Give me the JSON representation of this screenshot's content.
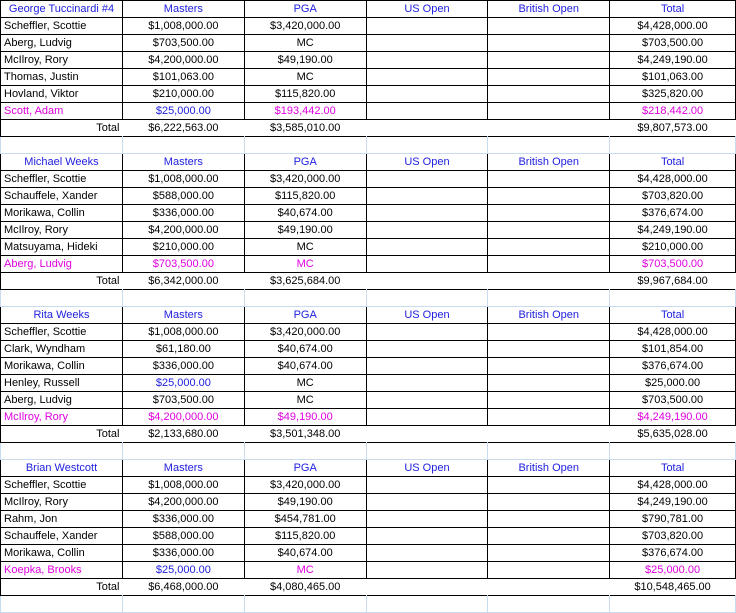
{
  "groups": [
    {
      "owner": "George Tuccinardi #4",
      "columns": [
        "Masters",
        "PGA",
        "US Open",
        "British Open",
        "Total"
      ],
      "rows": [
        {
          "name": "Scheffler, Scottie",
          "masters": "$1,008,000.00",
          "pga": "$3,420,000.00",
          "us": "",
          "british": "",
          "total": "$4,428,000.00",
          "alt": false
        },
        {
          "name": "Aberg, Ludvig",
          "masters": "$703,500.00",
          "pga": "MC",
          "us": "",
          "british": "",
          "total": "$703,500.00",
          "alt": false
        },
        {
          "name": "McIlroy, Rory",
          "masters": "$4,200,000.00",
          "pga": "$49,190.00",
          "us": "",
          "british": "",
          "total": "$4,249,190.00",
          "alt": false
        },
        {
          "name": "Thomas, Justin",
          "masters": "$101,063.00",
          "pga": "MC",
          "us": "",
          "british": "",
          "total": "$101,063.00",
          "alt": false
        },
        {
          "name": "Hovland, Viktor",
          "masters": "$210,000.00",
          "pga": "$115,820.00",
          "us": "",
          "british": "",
          "total": "$325,820.00",
          "alt": false
        },
        {
          "name": "Scott, Adam",
          "masters": "$25,000.00",
          "pga": "$193,442.00",
          "us": "",
          "british": "",
          "total": "$218,442.00",
          "alt": true,
          "masters_blue": true
        }
      ],
      "total": {
        "label": "Total",
        "masters": "$6,222,563.00",
        "pga": "$3,585,010.00",
        "total": "$9,807,573.00"
      }
    },
    {
      "owner": "Michael Weeks",
      "columns": [
        "Masters",
        "PGA",
        "US Open",
        "British Open",
        "Total"
      ],
      "rows": [
        {
          "name": "Scheffler, Scottie",
          "masters": "$1,008,000.00",
          "pga": "$3,420,000.00",
          "us": "",
          "british": "",
          "total": "$4,428,000.00",
          "alt": false
        },
        {
          "name": "Schauffele, Xander",
          "masters": "$588,000.00",
          "pga": "$115,820.00",
          "us": "",
          "british": "",
          "total": "$703,820.00",
          "alt": false
        },
        {
          "name": "Morikawa, Collin",
          "masters": "$336,000.00",
          "pga": "$40,674.00",
          "us": "",
          "british": "",
          "total": "$376,674.00",
          "alt": false
        },
        {
          "name": "McIlroy, Rory",
          "masters": "$4,200,000.00",
          "pga": "$49,190.00",
          "us": "",
          "british": "",
          "total": "$4,249,190.00",
          "alt": false
        },
        {
          "name": "Matsuyama, Hideki",
          "masters": "$210,000.00",
          "pga": "MC",
          "us": "",
          "british": "",
          "total": "$210,000.00",
          "alt": false
        },
        {
          "name": "Aberg, Ludvig",
          "masters": "$703,500.00",
          "pga": "MC",
          "us": "",
          "british": "",
          "total": "$703,500.00",
          "alt": true
        }
      ],
      "total": {
        "label": "Total",
        "masters": "$6,342,000.00",
        "pga": "$3,625,684.00",
        "total": "$9,967,684.00"
      }
    },
    {
      "owner": "Rita Weeks",
      "columns": [
        "Masters",
        "PGA",
        "US Open",
        "British Open",
        "Total"
      ],
      "rows": [
        {
          "name": "Scheffler, Scottie",
          "masters": "$1,008,000.00",
          "pga": "$3,420,000.00",
          "us": "",
          "british": "",
          "total": "$4,428,000.00",
          "alt": false
        },
        {
          "name": "Clark, Wyndham",
          "masters": "$61,180.00",
          "pga": "$40,674.00",
          "us": "",
          "british": "",
          "total": "$101,854.00",
          "alt": false
        },
        {
          "name": "Morikawa, Collin",
          "masters": "$336,000.00",
          "pga": "$40,674.00",
          "us": "",
          "british": "",
          "total": "$376,674.00",
          "alt": false
        },
        {
          "name": "Henley, Russell",
          "masters": "$25,000.00",
          "pga": "MC",
          "us": "",
          "british": "",
          "total": "$25,000.00",
          "alt": false,
          "masters_blue": true
        },
        {
          "name": "Aberg, Ludvig",
          "masters": "$703,500.00",
          "pga": "MC",
          "us": "",
          "british": "",
          "total": "$703,500.00",
          "alt": false
        },
        {
          "name": "McIlroy, Rory",
          "masters": "$4,200,000.00",
          "pga": "$49,190.00",
          "us": "",
          "british": "",
          "total": "$4,249,190.00",
          "alt": true
        }
      ],
      "total": {
        "label": "Total",
        "masters": "$2,133,680.00",
        "pga": "$3,501,348.00",
        "total": "$5,635,028.00"
      }
    },
    {
      "owner": "Brian Westcott",
      "columns": [
        "Masters",
        "PGA",
        "US Open",
        "British Open",
        "Total"
      ],
      "rows": [
        {
          "name": "Scheffler, Scottie",
          "masters": "$1,008,000.00",
          "pga": "$3,420,000.00",
          "us": "",
          "british": "",
          "total": "$4,428,000.00",
          "alt": false
        },
        {
          "name": "McIlroy, Rory",
          "masters": "$4,200,000.00",
          "pga": "$49,190.00",
          "us": "",
          "british": "",
          "total": "$4,249,190.00",
          "alt": false
        },
        {
          "name": "Rahm, Jon",
          "masters": "$336,000.00",
          "pga": "$454,781.00",
          "us": "",
          "british": "",
          "total": "$790,781.00",
          "alt": false
        },
        {
          "name": "Schauffele, Xander",
          "masters": "$588,000.00",
          "pga": "$115,820.00",
          "us": "",
          "british": "",
          "total": "$703,820.00",
          "alt": false
        },
        {
          "name": "Morikawa, Collin",
          "masters": "$336,000.00",
          "pga": "$40,674.00",
          "us": "",
          "british": "",
          "total": "$376,674.00",
          "alt": false
        },
        {
          "name": "Koepka, Brooks",
          "masters": "$25,000.00",
          "pga": "MC",
          "us": "",
          "british": "",
          "total": "$25,000.00",
          "alt": true,
          "masters_blue": true
        }
      ],
      "total": {
        "label": "Total",
        "masters": "$6,468,000.00",
        "pga": "$4,080,465.00",
        "total": "$10,548,465.00"
      }
    }
  ],
  "colors": {
    "header_text": "#2020e0",
    "alternate_text": "#e000e0",
    "gridline": "#c9dcef"
  }
}
